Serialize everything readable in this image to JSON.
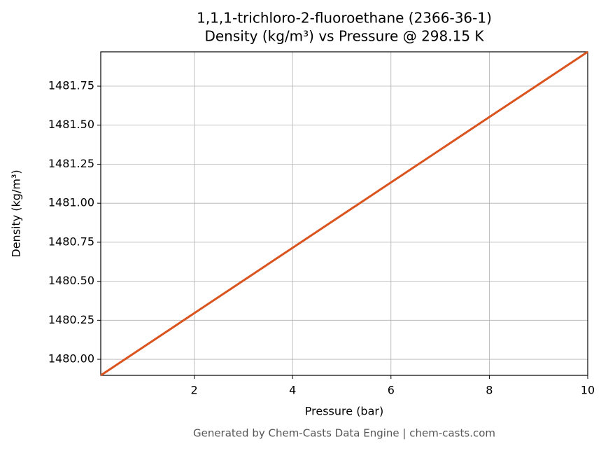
{
  "chart_data": {
    "type": "line",
    "title": "1,1,1-trichloro-2-fluoroethane (2366-36-1)",
    "subtitle": "Density (kg/m³) vs Pressure @ 298.15 K",
    "x_label": "Pressure (bar)",
    "y_label": "Density (kg/m³)",
    "footer": "Generated by Chem-Casts Data Engine | chem-casts.com",
    "x": [
      0.1,
      2,
      4,
      6,
      8,
      10
    ],
    "series": [
      {
        "name": "Density",
        "color": "#d9541e",
        "values": [
          1479.897,
          1480.295,
          1480.714,
          1481.133,
          1481.552,
          1481.97
        ]
      }
    ],
    "xlim": [
      0.1,
      10
    ],
    "xticks": [
      2,
      4,
      6,
      8,
      10
    ],
    "ylim": [
      1479.897,
      1481.97
    ],
    "yticks": [
      {
        "value": 1480,
        "label": "1480.00"
      },
      {
        "value": 1480.25,
        "label": "1480.25"
      },
      {
        "value": 1480.5,
        "label": "1480.50"
      },
      {
        "value": 1480.75,
        "label": "1480.75"
      },
      {
        "value": 1481,
        "label": "1481.00"
      },
      {
        "value": 1481.25,
        "label": "1481.25"
      },
      {
        "value": 1481.5,
        "label": "1481.50"
      },
      {
        "value": 1481.75,
        "label": "1481.75"
      }
    ],
    "grid": true
  }
}
